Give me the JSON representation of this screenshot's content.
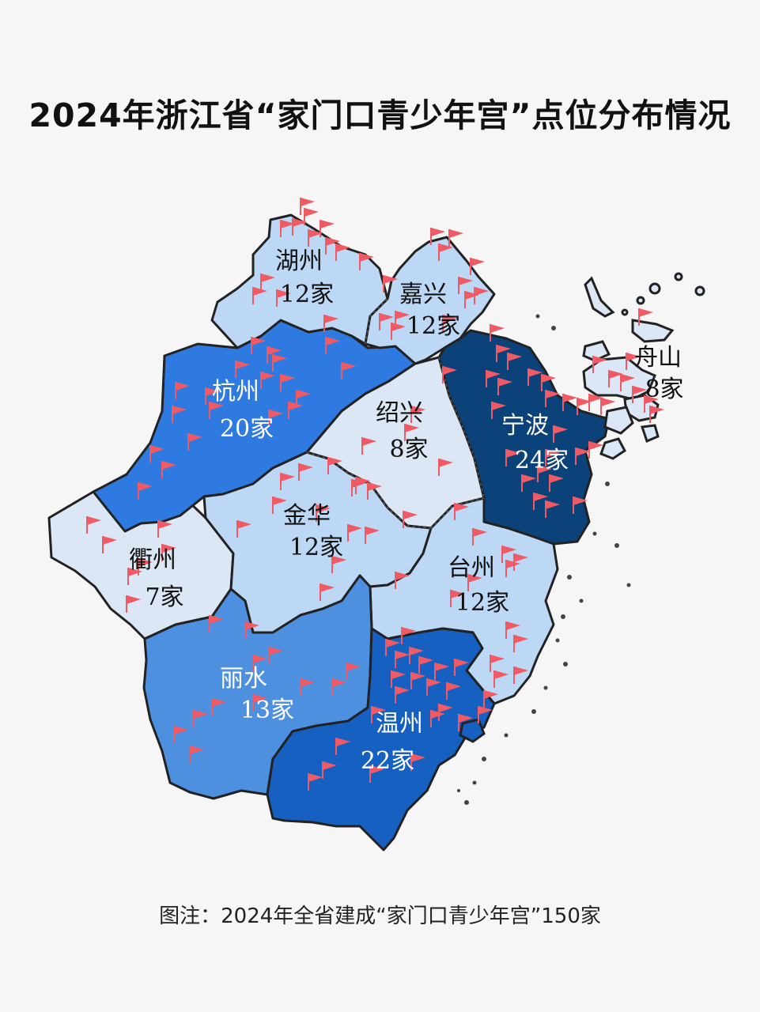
{
  "title": "2024年浙江省“家门口青少年宫”点位分布情况",
  "footnote": "图注：2024年全省建成“家门口青少年宫”150家",
  "colors": {
    "dark": "#0b4279",
    "medium_dark": "#1660c2",
    "medium": "#2e7ae0",
    "medium_light": "#4d90e0",
    "light": "#bdd8f5",
    "very_light": "#dbe7f4",
    "flag": "#f05a64",
    "background": "#f6f6f6"
  },
  "flag_icon": "red-flag-icon",
  "regions": [
    {
      "id": "huzhou",
      "name": "湖州",
      "count": "12家",
      "shade": "light"
    },
    {
      "id": "jiaxing",
      "name": "嘉兴",
      "count": "12家",
      "shade": "light"
    },
    {
      "id": "hangzhou",
      "name": "杭州",
      "count": "20家",
      "shade": "medium"
    },
    {
      "id": "shaoxing",
      "name": "绍兴",
      "count": "8家",
      "shade": "very_light"
    },
    {
      "id": "ningbo",
      "name": "宁波",
      "count": "24家",
      "shade": "dark"
    },
    {
      "id": "zhoushan",
      "name": "舟山",
      "count": "8家",
      "shade": "very_light"
    },
    {
      "id": "jinhua",
      "name": "金华",
      "count": "12家",
      "shade": "light"
    },
    {
      "id": "quzhou",
      "name": "衢州",
      "count": "7家",
      "shade": "very_light"
    },
    {
      "id": "taizhou",
      "name": "台州",
      "count": "12家",
      "shade": "light"
    },
    {
      "id": "lishui",
      "name": "丽水",
      "count": "13家",
      "shade": "medium_light"
    },
    {
      "id": "wenzhou",
      "name": "温州",
      "count": "22家",
      "shade": "medium_dark"
    }
  ]
}
